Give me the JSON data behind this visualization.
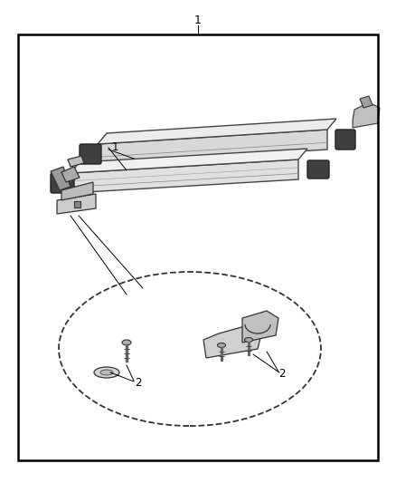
{
  "fig_width": 4.38,
  "fig_height": 5.33,
  "dpi": 100,
  "bg": "#ffffff",
  "lc": "#000000",
  "label1": "1",
  "label2": "2",
  "border": [
    20,
    25,
    398,
    470
  ],
  "carrier_color": "#e8e8e8",
  "carrier_edge": "#333333",
  "clamp_color": "#d0d0d0",
  "dark_color": "#555555",
  "light_gray": "#f0f0f0"
}
